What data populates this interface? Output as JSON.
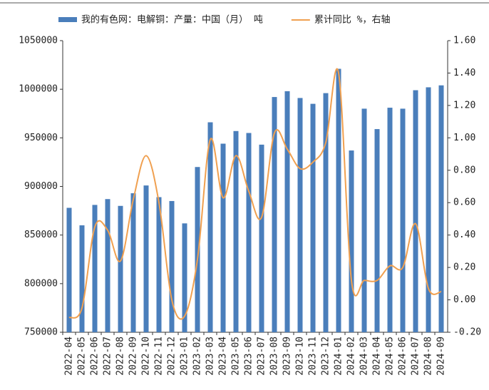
{
  "chart_data": {
    "type": "bar_line",
    "categories": [
      "2022-04",
      "2022-05",
      "2022-06",
      "2022-07",
      "2022-08",
      "2022-09",
      "2022-10",
      "2022-11",
      "2022-12",
      "2023-01",
      "2023-02",
      "2023-03",
      "2023-04",
      "2023-05",
      "2023-06",
      "2023-07",
      "2023-08",
      "2023-09",
      "2023-10",
      "2023-11",
      "2023-12",
      "2024-01",
      "2024-02",
      "2024-03",
      "2024-04",
      "2024-05",
      "2024-06",
      "2024-07",
      "2024-08",
      "2024-09"
    ],
    "series": [
      {
        "name": "我的有色网：电解铜：产量：中国（月） 吨",
        "type": "bar",
        "color": "#4a7ebb",
        "values": [
          878000,
          860000,
          881000,
          887000,
          880000,
          893000,
          901000,
          889000,
          885000,
          862000,
          920000,
          966000,
          944000,
          957000,
          955000,
          943000,
          992000,
          998000,
          991000,
          985000,
          996000,
          1021000,
          937000,
          980000,
          959000,
          981000,
          980000,
          999000,
          1002000,
          1004000
        ]
      },
      {
        "name": "累计同比 %，右轴",
        "type": "line",
        "axis": "y2",
        "color": "#f0a050",
        "values": [
          -0.11,
          -0.05,
          0.45,
          0.43,
          0.24,
          0.62,
          0.89,
          0.6,
          0.0,
          -0.1,
          0.25,
          0.99,
          0.63,
          0.89,
          0.67,
          0.51,
          1.03,
          0.93,
          0.81,
          0.85,
          0.97,
          1.4,
          0.12,
          0.12,
          0.12,
          0.21,
          0.2,
          0.47,
          0.07,
          0.05
        ]
      }
    ],
    "ylim": [
      750000,
      1050000
    ],
    "yticks": [
      750000,
      800000,
      850000,
      900000,
      950000,
      1000000,
      1050000
    ],
    "y2lim": [
      -0.2,
      1.6
    ],
    "y2ticks": [
      {
        "value": -0.2,
        "label": "-0.20"
      },
      {
        "value": 0,
        "label": "0.00"
      },
      {
        "value": 0.2,
        "label": "0.20"
      },
      {
        "value": 0.4,
        "label": "0.40"
      },
      {
        "value": 0.6,
        "label": "0.60"
      },
      {
        "value": 0.8,
        "label": "0.80"
      },
      {
        "value": 1.0,
        "label": "1.00"
      },
      {
        "value": 1.2,
        "label": "1.20"
      },
      {
        "value": 1.4,
        "label": "1.40"
      },
      {
        "value": 1.6,
        "label": "1.60"
      }
    ],
    "legend": "top"
  }
}
